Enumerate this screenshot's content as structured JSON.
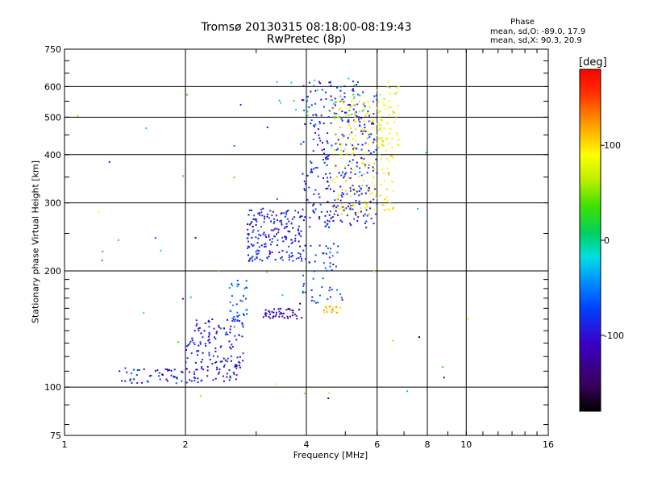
{
  "chart_data": {
    "type": "scatter",
    "title": "Tromsø 20130315 08:18:00-08:19:43",
    "subtitle": "RwPretec (8p)",
    "xlabel": "Frequency [MHz]",
    "ylabel": "Stationary phase Virtual Height [km]",
    "x_scale": "log",
    "y_scale": "log",
    "xlim": [
      1,
      16
    ],
    "ylim": [
      75,
      750
    ],
    "x_ticks": [
      1,
      2,
      4,
      6,
      8,
      10,
      16
    ],
    "x_tick_labels": [
      "1",
      "2",
      "4",
      "6",
      "8",
      "10",
      "16"
    ],
    "y_ticks": [
      75,
      100,
      200,
      300,
      400,
      500,
      600,
      750
    ],
    "y_tick_labels": [
      "75",
      "100",
      "200",
      "300",
      "400",
      "500",
      "600",
      "750"
    ],
    "grid": true,
    "legend": {
      "title": "Phase",
      "line_o": "mean, sd,O: -89.0, 17.9",
      "line_x": "mean, sd,X:  90.3, 20.9",
      "position": "top-right"
    },
    "colorbar": {
      "unit": "[deg]",
      "range": [
        -180,
        180
      ],
      "ticks": [
        100,
        0,
        -100
      ],
      "tick_labels": [
        "100",
        "0",
        "-100"
      ]
    },
    "point_groups": [
      {
        "name": "low-F-trace",
        "fmin": 1.35,
        "fmax": 2.2,
        "hmin": 102,
        "hmax": 112,
        "phase": -100,
        "count": 60
      },
      {
        "name": "F-trace-rise",
        "fmin": 2.0,
        "fmax": 2.8,
        "hmin": 103,
        "hmax": 150,
        "phase": -105,
        "count": 150
      },
      {
        "name": "F-trace-step",
        "fmin": 2.55,
        "fmax": 2.85,
        "hmin": 140,
        "hmax": 190,
        "phase": -75,
        "count": 35
      },
      {
        "name": "E-layer-trace",
        "fmin": 3.1,
        "fmax": 3.9,
        "hmin": 150,
        "hmax": 160,
        "phase": -120,
        "count": 45
      },
      {
        "name": "F1-cusp-cloud",
        "fmin": 2.85,
        "fmax": 3.9,
        "hmin": 212,
        "hmax": 290,
        "phase": -100,
        "count": 190
      },
      {
        "name": "O-trace-main",
        "fmin": 3.9,
        "fmax": 6.0,
        "hmin": 258,
        "hmax": 620,
        "phase": -100,
        "count": 340
      },
      {
        "name": "X-trace-yellow",
        "fmin": 4.6,
        "fmax": 6.6,
        "hmin": 280,
        "hmax": 560,
        "phase": 95,
        "count": 180
      },
      {
        "name": "X-trace-spread",
        "fmin": 6.0,
        "fmax": 6.8,
        "hmin": 400,
        "hmax": 620,
        "phase": 75,
        "count": 50
      },
      {
        "name": "mid-cluster",
        "fmin": 3.9,
        "fmax": 5.0,
        "hmin": 165,
        "hmax": 235,
        "phase": -90,
        "count": 55
      },
      {
        "name": "yellow-patch-160",
        "fmin": 4.4,
        "fmax": 4.9,
        "hmin": 155,
        "hmax": 162,
        "phase": 110,
        "count": 18
      },
      {
        "name": "scatter-high",
        "fmin": 3.3,
        "fmax": 5.6,
        "hmin": 500,
        "hmax": 630,
        "phase": -20,
        "count": 30
      },
      {
        "name": "scatter-outliers",
        "fmin": 1.0,
        "fmax": 12.0,
        "hmin": 90,
        "hmax": 600,
        "phase": 0,
        "count": 45
      }
    ]
  }
}
